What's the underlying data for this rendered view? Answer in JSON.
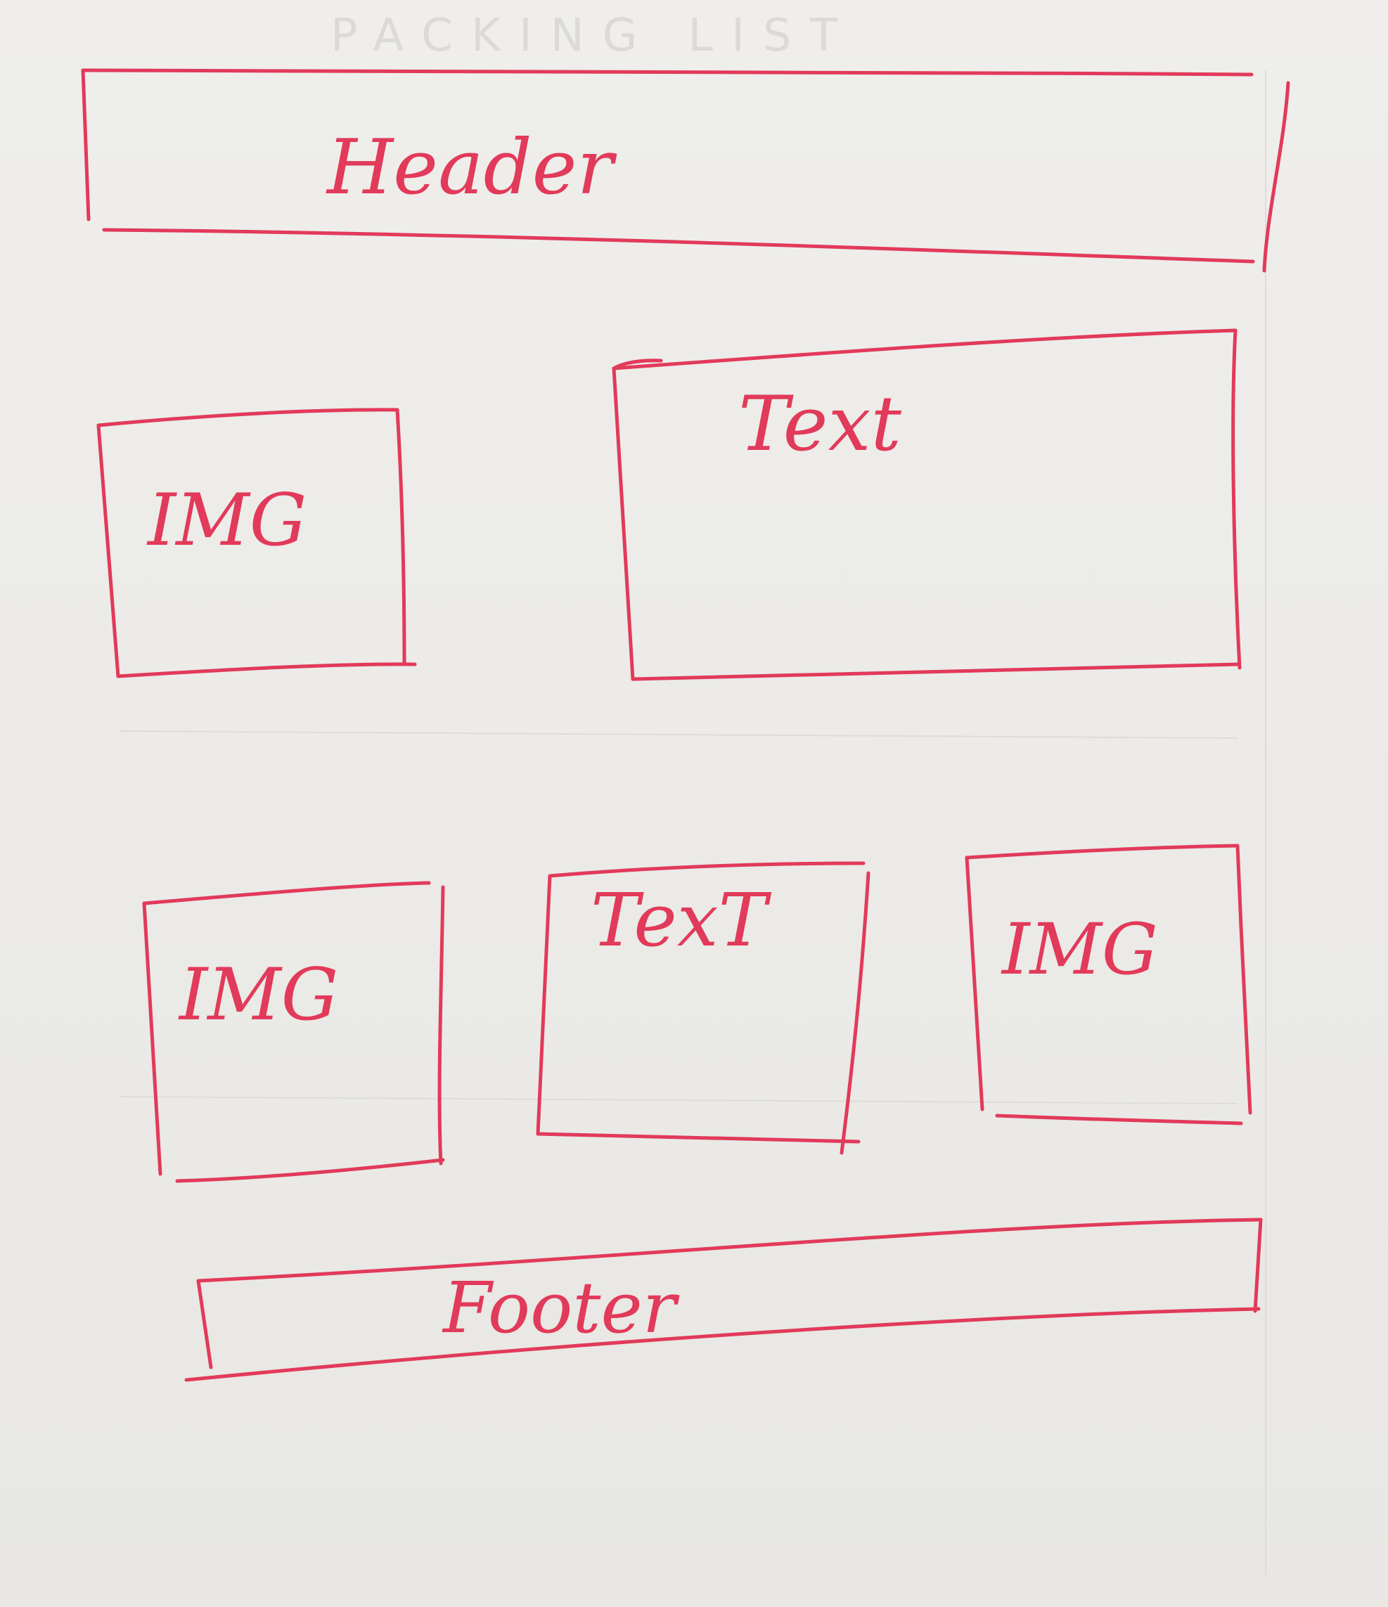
{
  "sketch": {
    "faint_print": "PACKING LIST",
    "header_label": "Header",
    "footer_label": "Footer",
    "row1": {
      "image_label": "IMG",
      "text_label": "Text"
    },
    "row2": {
      "image_left_label": "IMG",
      "text_label": "TexT",
      "image_right_label": "IMG"
    },
    "ink_color": "#e23a5a",
    "paper_color": "#ecebe8"
  }
}
